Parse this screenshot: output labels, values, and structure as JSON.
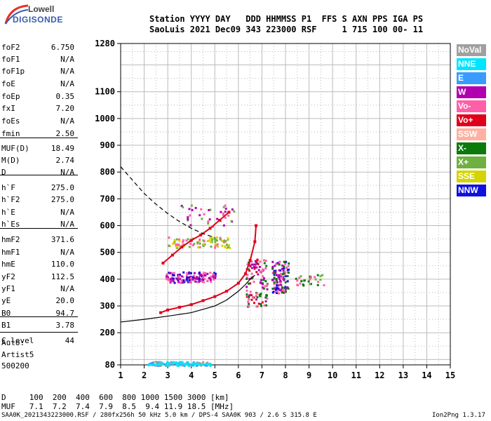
{
  "logo": {
    "top": "Lowell",
    "bottom": "DIGISONDE"
  },
  "header": {
    "line1": "Station YYYY DAY   DDD HHMMSS P1  FFS S AXN PPS IGA PS",
    "line2": "SaoLuis 2021 Dec09 343 223000 RSF     1 715 100 00- 11"
  },
  "params": [
    {
      "name": "foF2",
      "value": "6.750"
    },
    {
      "name": "foF1",
      "value": "N/A"
    },
    {
      "name": "foF1p",
      "value": "N/A"
    },
    {
      "name": "foE",
      "value": "N/A"
    },
    {
      "name": "foEp",
      "value": "0.35"
    },
    {
      "name": "fxI",
      "value": "7.20"
    },
    {
      "name": "foEs",
      "value": "N/A"
    },
    {
      "name": "fmin",
      "value": "2.50"
    },
    {
      "name": "MUF(D)",
      "value": "18.49"
    },
    {
      "name": "M(D)",
      "value": "2.74"
    },
    {
      "name": "D",
      "value": "N/A"
    },
    {
      "name": "h`F",
      "value": "275.0"
    },
    {
      "name": "h`F2",
      "value": "275.0"
    },
    {
      "name": "h`E",
      "value": "N/A"
    },
    {
      "name": "h`Es",
      "value": "N/A"
    },
    {
      "name": "hmF2",
      "value": "371.6"
    },
    {
      "name": "hmF1",
      "value": "N/A"
    },
    {
      "name": "hmE",
      "value": "110.0"
    },
    {
      "name": "yF2",
      "value": "112.5"
    },
    {
      "name": "yF1",
      "value": "N/A"
    },
    {
      "name": "yE",
      "value": "20.0"
    },
    {
      "name": "B0",
      "value": "94.7"
    },
    {
      "name": "B1",
      "value": "3.78"
    },
    {
      "name": "C-level",
      "value": "44"
    }
  ],
  "auto": [
    "Auto:",
    "Artist5",
    "500200"
  ],
  "legend": [
    {
      "label": "NoVal",
      "color": "#a0a0a0"
    },
    {
      "label": "NNE",
      "color": "#00e5ff"
    },
    {
      "label": "E",
      "color": "#3a9bff"
    },
    {
      "label": "W",
      "color": "#b000b0"
    },
    {
      "label": "Vo-",
      "color": "#ff5fa8"
    },
    {
      "label": "Vo+",
      "color": "#e0001a"
    },
    {
      "label": "SSW",
      "color": "#ffb0a0"
    },
    {
      "label": "X-",
      "color": "#0a7a0a"
    },
    {
      "label": "X+",
      "color": "#6fb040"
    },
    {
      "label": "SSE",
      "color": "#d4d400"
    },
    {
      "label": "NNW",
      "color": "#1010e0"
    }
  ],
  "bottom": {
    "d_row": "D     100  200  400  600  800 1000 1500 3000 [km]",
    "muf_row": "MUF   7.1  7.2  7.4  7.9  8.5  9.4 11.9 18.5 [MHz]"
  },
  "footer": {
    "left": "SAA0K_2021343223000.RSF / 280fx256h 50 kHz 5.0 km / DPS-4 SAA0K 903 / 2.6 S 315.8 E",
    "right": "Ion2Png 1.3.17"
  },
  "chart_data": {
    "type": "scatter",
    "xlim": [
      1,
      15
    ],
    "ylim": [
      80,
      1280
    ],
    "x_ticks": [
      1,
      2,
      3,
      4,
      5,
      6,
      7,
      8,
      9,
      10,
      11,
      12,
      13,
      14,
      15
    ],
    "y_ticks": [
      80,
      200,
      300,
      400,
      500,
      600,
      700,
      800,
      900,
      1000,
      1100,
      1280
    ],
    "grid": true,
    "xlabel": "",
    "ylabel": "",
    "traces": [
      {
        "name": "F2 trace",
        "color": "#e0001a",
        "x": [
          2.7,
          3.0,
          3.5,
          4.0,
          4.5,
          5.0,
          5.5,
          6.0,
          6.3,
          6.5,
          6.7,
          6.75
        ],
        "y": [
          275,
          285,
          295,
          305,
          320,
          335,
          355,
          385,
          420,
          470,
          540,
          600
        ]
      },
      {
        "name": "F2 upper trace",
        "color": "#e0001a",
        "x": [
          2.8,
          3.2,
          3.6,
          4.0,
          4.4,
          4.8,
          5.2,
          5.6
        ],
        "y": [
          460,
          490,
          520,
          545,
          565,
          590,
          620,
          650
        ]
      },
      {
        "name": "Es layer",
        "color": "#00e5ff",
        "x": [
          2.2,
          2.6,
          3.0,
          3.4,
          3.8,
          4.2,
          4.8
        ],
        "y": [
          80,
          82,
          85,
          85,
          84,
          83,
          82
        ]
      }
    ],
    "profile_curve": {
      "x": [
        1.0,
        2.0,
        3.0,
        4.0,
        5.0,
        5.5,
        6.0,
        6.3,
        6.5,
        6.7
      ],
      "y": [
        240,
        250,
        262,
        275,
        300,
        322,
        355,
        380,
        400,
        415
      ]
    },
    "dashed_curve": {
      "x": [
        1.0,
        1.5,
        2.0,
        2.5,
        3.0,
        3.5,
        4.0,
        4.5,
        5.0
      ],
      "y": [
        820,
        770,
        720,
        680,
        645,
        615,
        590,
        570,
        555
      ]
    }
  }
}
